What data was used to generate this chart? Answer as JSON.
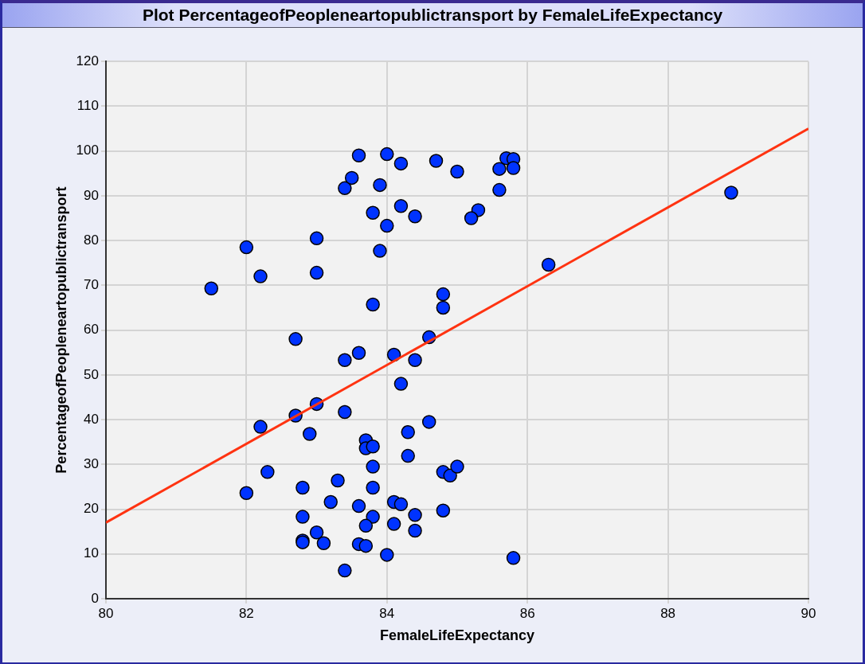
{
  "chart_data": {
    "type": "scatter",
    "title": "Plot PercentageofPeopleneartopublictransport by FemaleLifeExpectancy",
    "xlabel": "FemaleLifeExpectancy",
    "ylabel": "PercentageofPeopleneartopublictransport",
    "xlim": [
      80,
      90
    ],
    "xticks": [
      80,
      82,
      84,
      86,
      88,
      90
    ],
    "ylim": [
      0,
      120
    ],
    "yticks": [
      0,
      10,
      20,
      30,
      40,
      50,
      60,
      70,
      80,
      90,
      100,
      110,
      120
    ],
    "grid": true,
    "legend": false,
    "marker": "circle",
    "series": [
      {
        "type": "scatter",
        "color": "#0033ff",
        "x": [
          81.5,
          82.0,
          82.2,
          83.0,
          83.0,
          83.4,
          83.5,
          83.6,
          84.0,
          84.2,
          83.9,
          83.8,
          84.2,
          84.4,
          84.0,
          83.9,
          84.7,
          85.0,
          85.6,
          85.7,
          85.8,
          85.8,
          85.6,
          85.3,
          85.2,
          86.3,
          88.9,
          84.8,
          84.8,
          83.8,
          82.7,
          83.4,
          83.6,
          84.1,
          84.4,
          84.6,
          84.2,
          83.4,
          82.7,
          82.2,
          83.0,
          82.9,
          83.7,
          83.7,
          83.8,
          84.3,
          84.6,
          84.3,
          83.8,
          84.8,
          84.9,
          85.0,
          82.3,
          83.3,
          82.8,
          83.8,
          82.0,
          83.2,
          83.6,
          84.1,
          84.2,
          83.8,
          84.4,
          84.8,
          82.8,
          83.7,
          84.1,
          84.4,
          83.0,
          82.8,
          82.8,
          83.1,
          83.6,
          83.7,
          84.0,
          85.8,
          83.4
        ],
        "values": [
          69.3,
          78.5,
          72,
          80.5,
          72.8,
          91.7,
          94,
          99,
          99.3,
          97.2,
          92.4,
          86.2,
          87.7,
          85.4,
          83.3,
          77.7,
          97.8,
          95.4,
          96,
          98.4,
          98.2,
          96.2,
          91.3,
          86.8,
          85,
          74.6,
          90.7,
          68,
          65,
          65.7,
          58,
          53.3,
          54.9,
          54.5,
          53.3,
          58.4,
          48,
          41.7,
          40.9,
          38.4,
          43.5,
          36.8,
          35.4,
          33.6,
          34,
          37.2,
          39.5,
          31.9,
          29.5,
          28.3,
          27.5,
          29.5,
          28.3,
          26.4,
          24.8,
          24.8,
          23.6,
          21.6,
          20.7,
          21.6,
          21.1,
          18.3,
          18.7,
          19.7,
          18.3,
          16.3,
          16.7,
          15.2,
          14.8,
          13,
          12.6,
          12.4,
          12.2,
          11.8,
          9.8,
          9.1,
          6.3
        ]
      },
      {
        "type": "line",
        "color": "#ff3311",
        "marker": "none",
        "x": [
          80,
          90
        ],
        "values": [
          17,
          105
        ]
      }
    ]
  }
}
